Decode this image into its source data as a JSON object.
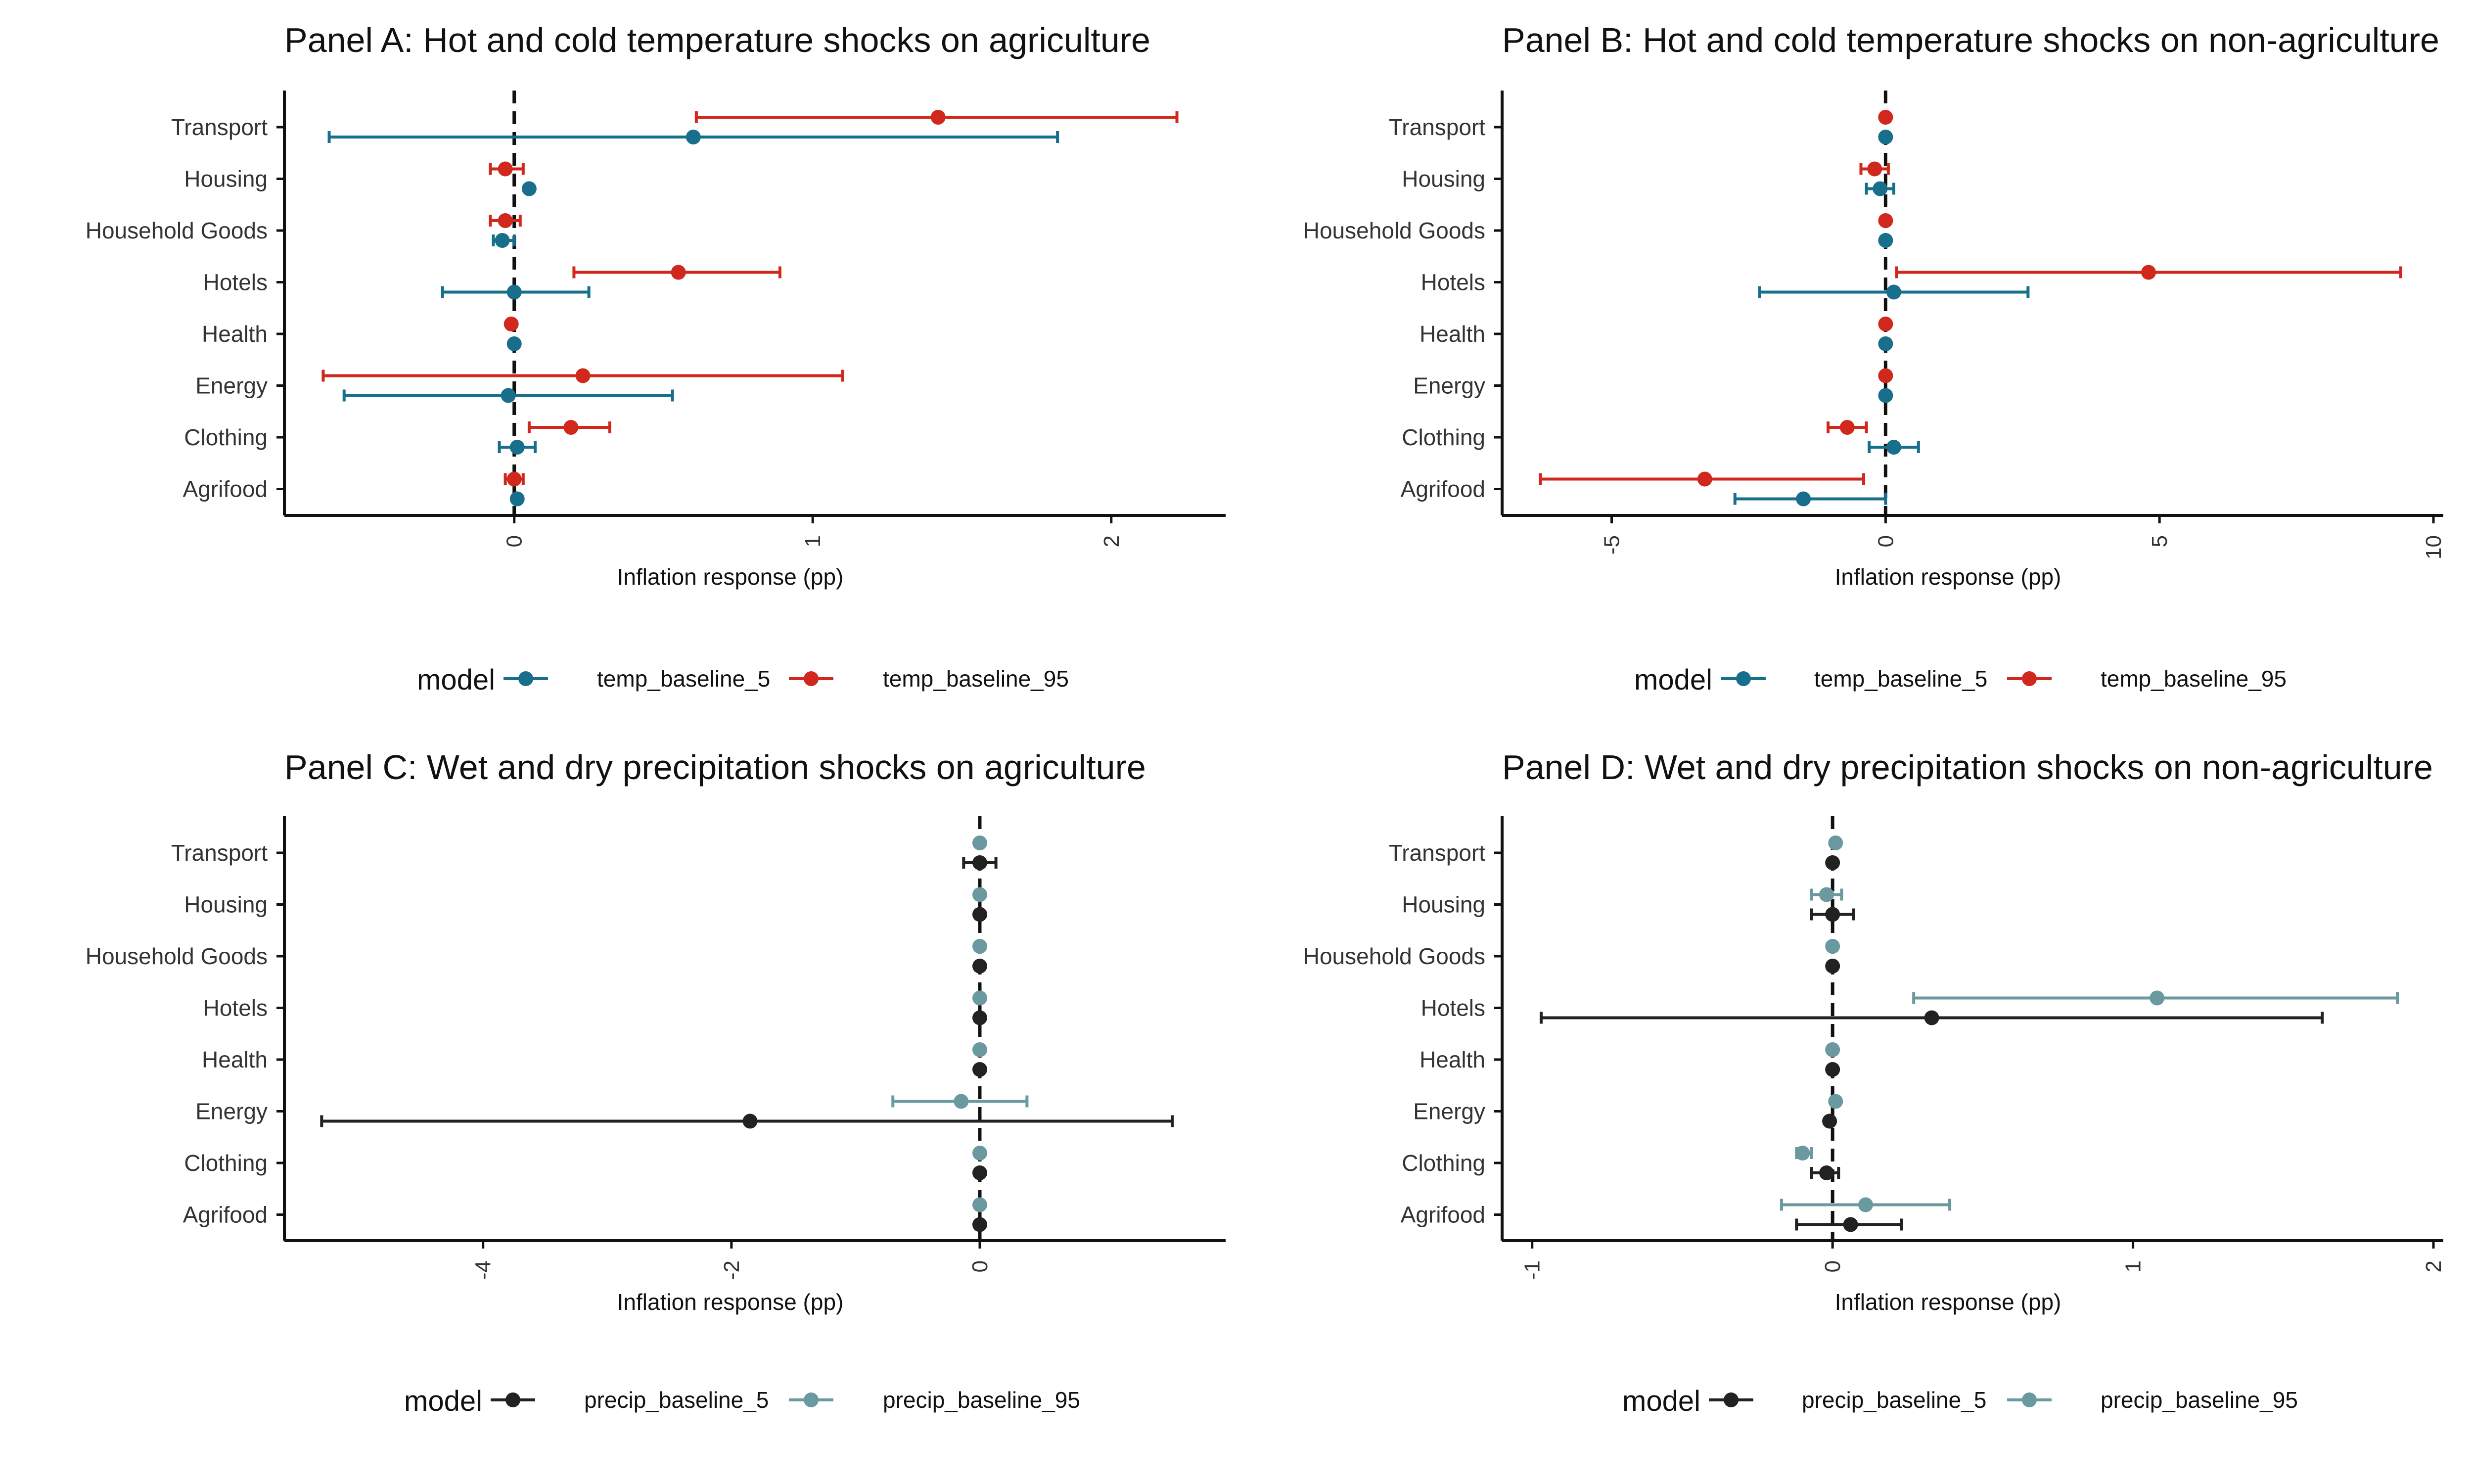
{
  "figure": {
    "legend_title": "model",
    "x_axis_label": "Inflation response (pp)"
  },
  "colors": {
    "temp_baseline_5": "#176f8c",
    "temp_baseline_95": "#d0281c",
    "precip_baseline_5": "#222222",
    "precip_baseline_95": "#6a9aa0",
    "zero_line": "#111111",
    "axis": "#111111",
    "text": "#333333",
    "title": "#111111"
  },
  "chart_data": [
    {
      "panel": "A",
      "type": "scatter",
      "title": "Panel A: Hot and cold temperature shocks on agriculture",
      "xlabel": "Inflation response (pp)",
      "categories": [
        "Transport",
        "Housing",
        "Household Goods",
        "Hotels",
        "Health",
        "Energy",
        "Clothing",
        "Agrifood"
      ],
      "xlim": [
        -0.77,
        2.35
      ],
      "xticks": [
        0,
        1,
        2
      ],
      "xtick_labels": [
        "0",
        "1",
        "2"
      ],
      "series": [
        {
          "name": "temp_baseline_5",
          "color_key": "temp_baseline_5",
          "points": [
            {
              "value": 0.6,
              "low": -0.62,
              "high": 1.82
            },
            {
              "value": 0.05,
              "low": null,
              "high": null
            },
            {
              "value": -0.04,
              "low": -0.07,
              "high": 0.0
            },
            {
              "value": 0.0,
              "low": -0.24,
              "high": 0.25
            },
            {
              "value": 0.0,
              "low": null,
              "high": null
            },
            {
              "value": -0.02,
              "low": -0.57,
              "high": 0.53
            },
            {
              "value": 0.01,
              "low": -0.05,
              "high": 0.07
            },
            {
              "value": 0.01,
              "low": null,
              "high": null
            }
          ]
        },
        {
          "name": "temp_baseline_95",
          "color_key": "temp_baseline_95",
          "points": [
            {
              "value": 1.42,
              "low": 0.61,
              "high": 2.22
            },
            {
              "value": -0.03,
              "low": -0.08,
              "high": 0.03
            },
            {
              "value": -0.03,
              "low": -0.08,
              "high": 0.02
            },
            {
              "value": 0.55,
              "low": 0.2,
              "high": 0.89
            },
            {
              "value": -0.01,
              "low": null,
              "high": null
            },
            {
              "value": 0.23,
              "low": -0.64,
              "high": 1.1
            },
            {
              "value": 0.19,
              "low": 0.05,
              "high": 0.32
            },
            {
              "value": 0.0,
              "low": -0.03,
              "high": 0.03
            }
          ]
        }
      ]
    },
    {
      "panel": "B",
      "type": "scatter",
      "title": "Panel B: Hot and cold temperature shocks on non-agriculture",
      "xlabel": "Inflation response (pp)",
      "categories": [
        "Transport",
        "Housing",
        "Household Goods",
        "Hotels",
        "Health",
        "Energy",
        "Clothing",
        "Agrifood"
      ],
      "xlim": [
        -7.0,
        10.0
      ],
      "xticks": [
        -5,
        0,
        5,
        10
      ],
      "xtick_labels": [
        "-5",
        "0",
        "5",
        "10"
      ],
      "series": [
        {
          "name": "temp_baseline_5",
          "color_key": "temp_baseline_5",
          "points": [
            {
              "value": 0.0,
              "low": null,
              "high": null
            },
            {
              "value": -0.1,
              "low": -0.35,
              "high": 0.15
            },
            {
              "value": 0.0,
              "low": null,
              "high": null
            },
            {
              "value": 0.15,
              "low": -2.3,
              "high": 2.6
            },
            {
              "value": 0.0,
              "low": null,
              "high": null
            },
            {
              "value": 0.0,
              "low": null,
              "high": null
            },
            {
              "value": 0.15,
              "low": -0.3,
              "high": 0.6
            },
            {
              "value": -1.5,
              "low": -2.75,
              "high": 0.0
            }
          ]
        },
        {
          "name": "temp_baseline_95",
          "color_key": "temp_baseline_95",
          "points": [
            {
              "value": 0.0,
              "low": null,
              "high": null
            },
            {
              "value": -0.2,
              "low": -0.45,
              "high": 0.05
            },
            {
              "value": 0.0,
              "low": null,
              "high": null
            },
            {
              "value": 4.8,
              "low": 0.2,
              "high": 9.4
            },
            {
              "value": 0.0,
              "low": null,
              "high": null
            },
            {
              "value": 0.0,
              "low": null,
              "high": null
            },
            {
              "value": -0.7,
              "low": -1.05,
              "high": -0.35
            },
            {
              "value": -3.3,
              "low": -6.3,
              "high": -0.4
            }
          ]
        }
      ]
    },
    {
      "panel": "C",
      "type": "scatter",
      "title": "Panel C: Wet and dry precipitation shocks on agriculture",
      "xlabel": "Inflation response (pp)",
      "categories": [
        "Transport",
        "Housing",
        "Household Goods",
        "Hotels",
        "Health",
        "Energy",
        "Clothing",
        "Agrifood"
      ],
      "xlim": [
        -5.6,
        1.9
      ],
      "xticks": [
        -4,
        -2,
        0
      ],
      "xtick_labels": [
        "-4",
        "-2",
        "0"
      ],
      "series": [
        {
          "name": "precip_baseline_5",
          "color_key": "precip_baseline_5",
          "points": [
            {
              "value": 0.0,
              "low": -0.13,
              "high": 0.13
            },
            {
              "value": 0.0,
              "low": null,
              "high": null
            },
            {
              "value": 0.0,
              "low": null,
              "high": null
            },
            {
              "value": 0.0,
              "low": null,
              "high": null
            },
            {
              "value": 0.0,
              "low": null,
              "high": null
            },
            {
              "value": -1.85,
              "low": -5.3,
              "high": 1.55
            },
            {
              "value": 0.0,
              "low": null,
              "high": null
            },
            {
              "value": 0.0,
              "low": null,
              "high": null
            }
          ]
        },
        {
          "name": "precip_baseline_95",
          "color_key": "precip_baseline_95",
          "points": [
            {
              "value": 0.0,
              "low": null,
              "high": null
            },
            {
              "value": 0.0,
              "low": null,
              "high": null
            },
            {
              "value": 0.0,
              "low": null,
              "high": null
            },
            {
              "value": 0.0,
              "low": null,
              "high": null
            },
            {
              "value": 0.0,
              "low": null,
              "high": null
            },
            {
              "value": -0.15,
              "low": -0.7,
              "high": 0.38
            },
            {
              "value": 0.0,
              "low": null,
              "high": null
            },
            {
              "value": 0.0,
              "low": null,
              "high": null
            }
          ]
        }
      ]
    },
    {
      "panel": "D",
      "type": "scatter",
      "title": "Panel D: Wet and dry precipitation shocks on non-agriculture",
      "xlabel": "Inflation response (pp)",
      "categories": [
        "Transport",
        "Housing",
        "Household Goods",
        "Hotels",
        "Health",
        "Energy",
        "Clothing",
        "Agrifood"
      ],
      "xlim": [
        -1.1,
        2.0
      ],
      "xticks": [
        -1,
        0,
        1,
        2
      ],
      "xtick_labels": [
        "-1",
        "0",
        "1",
        "2"
      ],
      "series": [
        {
          "name": "precip_baseline_5",
          "color_key": "precip_baseline_5",
          "points": [
            {
              "value": 0.0,
              "low": null,
              "high": null
            },
            {
              "value": 0.0,
              "low": -0.07,
              "high": 0.07
            },
            {
              "value": 0.0,
              "low": null,
              "high": null
            },
            {
              "value": 0.33,
              "low": -0.97,
              "high": 1.63
            },
            {
              "value": 0.0,
              "low": null,
              "high": null
            },
            {
              "value": -0.01,
              "low": null,
              "high": null
            },
            {
              "value": -0.02,
              "low": -0.07,
              "high": 0.02
            },
            {
              "value": 0.06,
              "low": -0.12,
              "high": 0.23
            }
          ]
        },
        {
          "name": "precip_baseline_95",
          "color_key": "precip_baseline_95",
          "points": [
            {
              "value": 0.01,
              "low": null,
              "high": null
            },
            {
              "value": -0.02,
              "low": -0.07,
              "high": 0.03
            },
            {
              "value": 0.0,
              "low": null,
              "high": null
            },
            {
              "value": 1.08,
              "low": 0.27,
              "high": 1.88
            },
            {
              "value": 0.0,
              "low": null,
              "high": null
            },
            {
              "value": 0.01,
              "low": null,
              "high": null
            },
            {
              "value": -0.1,
              "low": -0.12,
              "high": -0.07
            },
            {
              "value": 0.11,
              "low": -0.17,
              "high": 0.39
            }
          ]
        }
      ]
    }
  ]
}
